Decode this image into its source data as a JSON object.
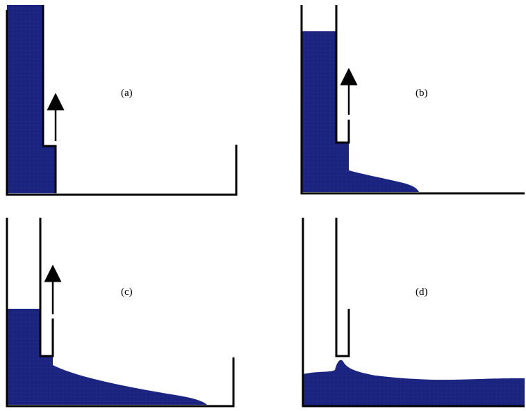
{
  "figure": {
    "panels": [
      {
        "id": "a",
        "label": "(a)"
      },
      {
        "id": "b",
        "label": "(b)"
      },
      {
        "id": "c",
        "label": "(c)"
      },
      {
        "id": "d",
        "label": "(d)"
      }
    ]
  },
  "colors": {
    "fluid": "#1a237e",
    "fluid_mesh": "#3346a6",
    "wall": "#000000",
    "background": "#ffffff"
  }
}
